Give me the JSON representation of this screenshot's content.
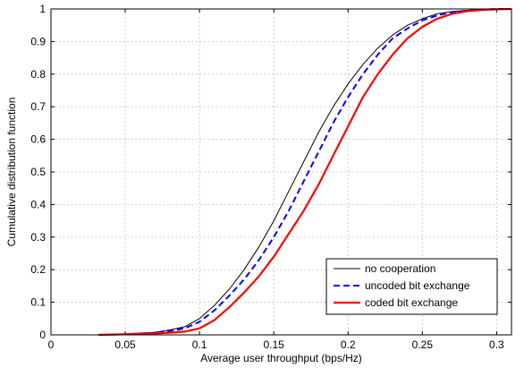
{
  "chart_data": {
    "type": "line",
    "title": "",
    "xlabel": "Average user throughput (bps/Hz)",
    "ylabel": "Cumulative distribution function",
    "xlim": [
      0,
      0.31
    ],
    "ylim": [
      0,
      1
    ],
    "xticks": [
      0,
      0.05,
      0.1,
      0.15,
      0.2,
      0.25,
      0.3
    ],
    "xtick_labels": [
      "0",
      "0.05",
      "0.1",
      "0.15",
      "0.2",
      "0.25",
      "0.3"
    ],
    "yticks": [
      0,
      0.1,
      0.2,
      0.3,
      0.4,
      0.5,
      0.6,
      0.7,
      0.8,
      0.9,
      1
    ],
    "ytick_labels": [
      "0",
      "0.1",
      "0.2",
      "0.3",
      "0.4",
      "0.5",
      "0.6",
      "0.7",
      "0.8",
      "0.9",
      "1"
    ],
    "grid": true,
    "legend_position": "bottom-right",
    "series": [
      {
        "name": "no cooperation",
        "color": "#000000",
        "style": "solid",
        "width": 1,
        "x": [
          0.032,
          0.05,
          0.07,
          0.08,
          0.09,
          0.1,
          0.11,
          0.12,
          0.13,
          0.14,
          0.15,
          0.16,
          0.17,
          0.18,
          0.19,
          0.2,
          0.21,
          0.22,
          0.23,
          0.24,
          0.25,
          0.26,
          0.27,
          0.28,
          0.29,
          0.3,
          0.31
        ],
        "y": [
          0,
          0.003,
          0.008,
          0.015,
          0.025,
          0.05,
          0.09,
          0.14,
          0.2,
          0.27,
          0.35,
          0.44,
          0.53,
          0.62,
          0.7,
          0.77,
          0.83,
          0.88,
          0.92,
          0.95,
          0.97,
          0.985,
          0.992,
          0.996,
          0.999,
          1,
          1
        ]
      },
      {
        "name": "uncoded bit exchange",
        "color": "#0000ff",
        "style": "dashed",
        "width": 2,
        "x": [
          0.032,
          0.05,
          0.07,
          0.08,
          0.09,
          0.1,
          0.11,
          0.12,
          0.13,
          0.14,
          0.15,
          0.16,
          0.17,
          0.18,
          0.19,
          0.2,
          0.21,
          0.22,
          0.23,
          0.24,
          0.25,
          0.26,
          0.27,
          0.28,
          0.29,
          0.3,
          0.31
        ],
        "y": [
          0,
          0.002,
          0.006,
          0.012,
          0.02,
          0.04,
          0.075,
          0.12,
          0.17,
          0.23,
          0.3,
          0.38,
          0.47,
          0.56,
          0.65,
          0.73,
          0.8,
          0.86,
          0.91,
          0.94,
          0.965,
          0.98,
          0.99,
          0.995,
          0.998,
          1,
          1
        ]
      },
      {
        "name": "coded bit exchange",
        "color": "#ff0000",
        "style": "solid",
        "width": 2.2,
        "x": [
          0.032,
          0.05,
          0.07,
          0.08,
          0.09,
          0.1,
          0.11,
          0.12,
          0.13,
          0.14,
          0.15,
          0.16,
          0.17,
          0.18,
          0.19,
          0.2,
          0.21,
          0.22,
          0.23,
          0.24,
          0.25,
          0.26,
          0.27,
          0.28,
          0.29,
          0.3,
          0.31
        ],
        "y": [
          0,
          0.002,
          0.004,
          0.007,
          0.01,
          0.02,
          0.045,
          0.085,
          0.13,
          0.18,
          0.24,
          0.31,
          0.38,
          0.46,
          0.55,
          0.64,
          0.73,
          0.8,
          0.86,
          0.91,
          0.945,
          0.97,
          0.985,
          0.993,
          0.997,
          0.999,
          1
        ]
      }
    ]
  }
}
